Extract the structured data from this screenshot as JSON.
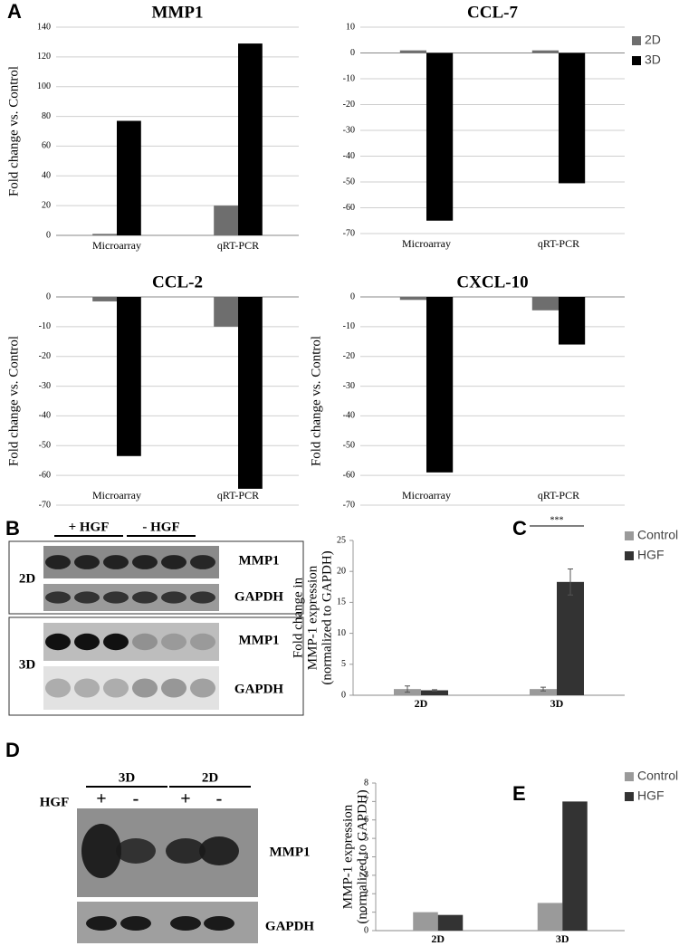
{
  "chart_data": [
    {
      "type": "bar",
      "title": "MMP1",
      "ylabel": "Fold change vs. Control",
      "categories": [
        "Microarray",
        "qRT-PCR"
      ],
      "series": [
        {
          "color": "#6e6e6e",
          "values": [
            1,
            20
          ]
        },
        {
          "color": "#000000",
          "values": [
            77,
            129
          ]
        }
      ],
      "ylim": [
        0,
        140
      ],
      "yticks": [
        0,
        20,
        40,
        60,
        80,
        100,
        120,
        140
      ],
      "grid": true
    },
    {
      "type": "bar",
      "title": "CCL-7",
      "categories": [
        "Microarray",
        "qRT-PCR"
      ],
      "series": [
        {
          "name": "2D",
          "color": "#6e6e6e",
          "values": [
            1,
            1
          ]
        },
        {
          "name": "3D",
          "color": "#000000",
          "values": [
            -65,
            -50.5
          ]
        }
      ],
      "ylim": [
        -70,
        10
      ],
      "yticks": [
        -70,
        -60,
        -50,
        -40,
        -30,
        -20,
        -10,
        0,
        10
      ],
      "grid": true,
      "legend": "right"
    },
    {
      "type": "bar",
      "title": "CCL-2",
      "ylabel": "Fold change vs. Control",
      "categories": [
        "Microarray",
        "qRT-PCR"
      ],
      "series": [
        {
          "color": "#6e6e6e",
          "values": [
            -1.5,
            -10
          ]
        },
        {
          "color": "#000000",
          "values": [
            -53.5,
            -64.5
          ]
        }
      ],
      "ylim": [
        -70,
        0
      ],
      "yticks": [
        -70,
        -60,
        -50,
        -40,
        -30,
        -20,
        -10,
        0
      ],
      "grid": true
    },
    {
      "type": "bar",
      "title": "CXCL-10",
      "ylabel": "Fold change vs. Control",
      "categories": [
        "Microarray",
        "qRT-PCR"
      ],
      "series": [
        {
          "color": "#6e6e6e",
          "values": [
            -1,
            -4.5
          ]
        },
        {
          "color": "#000000",
          "values": [
            -59,
            -16
          ]
        }
      ],
      "ylim": [
        -70,
        0
      ],
      "yticks": [
        -70,
        -60,
        -50,
        -40,
        -30,
        -20,
        -10,
        0
      ],
      "grid": true
    },
    {
      "type": "bar",
      "ylabel": [
        "Fold change in",
        "MMP-1 expression",
        "(normalized to GAPDH)"
      ],
      "categories": [
        "2D",
        "3D"
      ],
      "series": [
        {
          "name": "Control",
          "color": "#9a9a9a",
          "values": [
            1,
            1
          ],
          "errors": [
            0.5,
            0.3
          ]
        },
        {
          "name": "HGF",
          "color": "#333333",
          "values": [
            0.8,
            18.3
          ],
          "errors": [
            0.1,
            2.1
          ]
        }
      ],
      "ylim": [
        0,
        25
      ],
      "yticks": [
        0,
        5,
        10,
        15,
        20,
        25
      ],
      "grid": false,
      "legend": "right",
      "annotation": "***"
    },
    {
      "type": "bar",
      "ylabel": [
        "MMP-1 expression",
        "(normalized to GAPDH)"
      ],
      "categories": [
        "2D",
        "3D"
      ],
      "series": [
        {
          "name": "Control",
          "color": "#9a9a9a",
          "values": [
            1,
            1.5
          ]
        },
        {
          "name": "HGF",
          "color": "#333333",
          "values": [
            0.85,
            7
          ]
        }
      ],
      "ylim": [
        0,
        8
      ],
      "yticks": [
        0,
        1,
        2,
        3,
        4,
        5,
        6,
        7,
        8
      ],
      "grid": false,
      "legend": "right"
    }
  ],
  "panel_labels": [
    "A",
    "B",
    "C",
    "D",
    "E"
  ],
  "blot_b": {
    "treatments": [
      "+ HGF",
      "- HGF"
    ],
    "rows": [
      "2D",
      "3D"
    ],
    "bands": [
      "MMP1",
      "GAPDH",
      "MMP1",
      "GAPDH"
    ]
  },
  "blot_d": {
    "groups": [
      "3D",
      "2D"
    ],
    "treatment": "HGF",
    "signs": [
      "+",
      "-",
      "+",
      "-"
    ],
    "bands": [
      "MMP1",
      "GAPDH"
    ]
  }
}
